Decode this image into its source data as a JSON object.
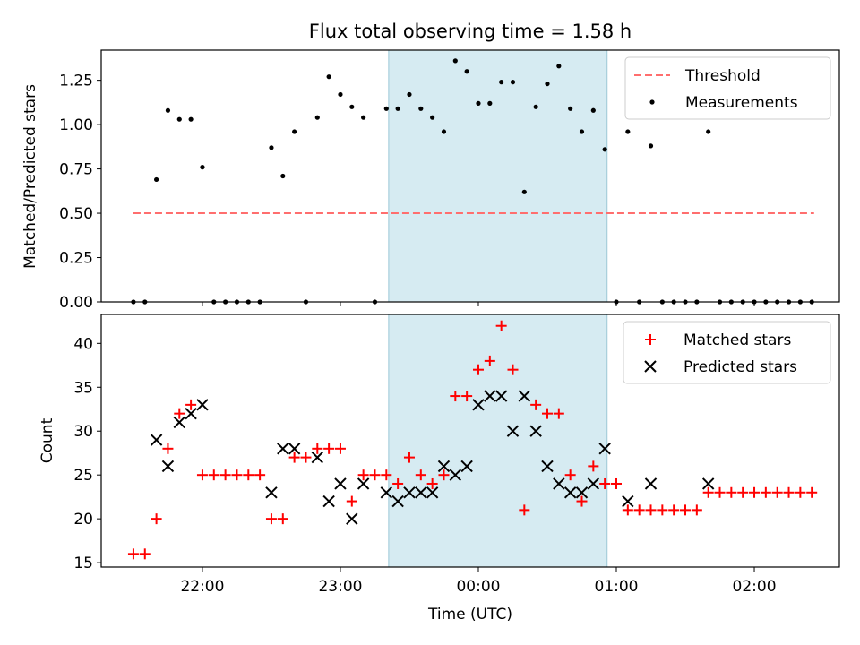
{
  "chart_data": {
    "title": "Flux total observing time = 1.58 h",
    "xlabel": "Time (UTC)",
    "x_unit": "minutes after 00:00 UTC",
    "x_ticks": [
      {
        "value": -120,
        "label": "22:00"
      },
      {
        "value": -60,
        "label": "23:00"
      },
      {
        "value": 0,
        "label": "00:00"
      },
      {
        "value": 60,
        "label": "01:00"
      },
      {
        "value": 120,
        "label": "02:00"
      }
    ],
    "xlim": [
      -164,
      157
    ],
    "shaded_interval": {
      "start": -39,
      "end": 56,
      "color": "#add8e6"
    },
    "panels": [
      {
        "type": "scatter",
        "ylabel": "Matched/Predicted stars",
        "ylim": [
          0,
          1.42
        ],
        "y_ticks": [
          "0.00",
          "0.25",
          "0.50",
          "0.75",
          "1.00",
          "1.25"
        ],
        "y_tick_values": [
          0,
          0.25,
          0.5,
          0.75,
          1.0,
          1.25
        ],
        "legend_position": "upper-right",
        "series": [
          {
            "name": "Threshold",
            "kind": "dashed-line",
            "color": "#ff6e6e",
            "x": [
              -150,
              146
            ],
            "y": [
              0.5,
              0.5
            ]
          },
          {
            "name": "Measurements",
            "kind": "dot",
            "color": "#000000",
            "x": [
              -150,
              -145,
              -140,
              -135,
              -130,
              -125,
              -120,
              -115,
              -110,
              -105,
              -100,
              -95,
              -90,
              -85,
              -80,
              -75,
              -70,
              -65,
              -60,
              -55,
              -50,
              -45,
              -40,
              -35,
              -30,
              -25,
              -20,
              -15,
              -10,
              -5,
              0,
              5,
              10,
              15,
              20,
              25,
              30,
              35,
              40,
              45,
              50,
              55,
              60,
              65,
              70,
              75,
              80,
              85,
              90,
              95,
              100,
              105,
              110,
              115,
              120,
              125,
              130,
              135,
              140,
              145
            ],
            "y": [
              0,
              0,
              0.69,
              1.08,
              1.03,
              1.03,
              0.76,
              0,
              0,
              0,
              0,
              0,
              0.87,
              0.71,
              0.96,
              0,
              1.04,
              1.27,
              1.17,
              1.1,
              1.04,
              0,
              1.09,
              1.09,
              1.17,
              1.09,
              1.04,
              0.96,
              1.36,
              1.3,
              1.12,
              1.12,
              1.24,
              1.24,
              0.62,
              1.1,
              1.23,
              1.33,
              1.09,
              0.96,
              1.08,
              0.86,
              0,
              0.96,
              0,
              0.88,
              0,
              0,
              0,
              0,
              0.96,
              0,
              0,
              0,
              0,
              0,
              0,
              0,
              0,
              0
            ]
          }
        ]
      },
      {
        "type": "scatter",
        "ylabel": "Count",
        "ylim": [
          14.5,
          43.3
        ],
        "y_ticks": [
          "15",
          "20",
          "25",
          "30",
          "35",
          "40"
        ],
        "y_tick_values": [
          15,
          20,
          25,
          30,
          35,
          40
        ],
        "legend_position": "upper-right",
        "series": [
          {
            "name": "Matched stars",
            "kind": "plus",
            "color": "#ff0000",
            "x": [
              -150,
              -145,
              -140,
              -135,
              -130,
              -125,
              -120,
              -115,
              -110,
              -105,
              -100,
              -95,
              -90,
              -85,
              -80,
              -75,
              -70,
              -65,
              -60,
              -55,
              -50,
              -45,
              -40,
              -35,
              -30,
              -25,
              -20,
              -15,
              -10,
              -5,
              0,
              5,
              10,
              15,
              20,
              25,
              30,
              35,
              40,
              45,
              50,
              55,
              60,
              65,
              70,
              75,
              80,
              85,
              90,
              95,
              100,
              105,
              110,
              115,
              120,
              125,
              130,
              135,
              140,
              145
            ],
            "y": [
              16,
              16,
              20,
              28,
              32,
              33,
              25,
              25,
              25,
              25,
              25,
              25,
              20,
              20,
              27,
              27,
              28,
              28,
              28,
              22,
              25,
              25,
              25,
              24,
              27,
              25,
              24,
              25,
              34,
              34,
              37,
              38,
              42,
              37,
              21,
              33,
              32,
              32,
              25,
              22,
              26,
              24,
              24,
              21,
              21,
              21,
              21,
              21,
              21,
              21,
              23,
              23,
              23,
              23,
              23,
              23,
              23,
              23,
              23,
              23
            ]
          },
          {
            "name": "Predicted stars",
            "kind": "x",
            "color": "#000000",
            "x": [
              -140,
              -135,
              -130,
              -125,
              -120,
              -90,
              -85,
              -80,
              -70,
              -65,
              -60,
              -55,
              -50,
              -40,
              -35,
              -30,
              -25,
              -20,
              -15,
              -10,
              -5,
              0,
              5,
              10,
              15,
              20,
              25,
              30,
              35,
              40,
              45,
              50,
              55,
              65,
              75,
              100
            ],
            "y": [
              29,
              26,
              31,
              32,
              33,
              23,
              28,
              28,
              27,
              22,
              24,
              20,
              24,
              23,
              22,
              23,
              23,
              23,
              26,
              25,
              26,
              33,
              34,
              34,
              30,
              34,
              30,
              26,
              24,
              23,
              23,
              24,
              28,
              22,
              24,
              24
            ]
          }
        ]
      }
    ]
  }
}
